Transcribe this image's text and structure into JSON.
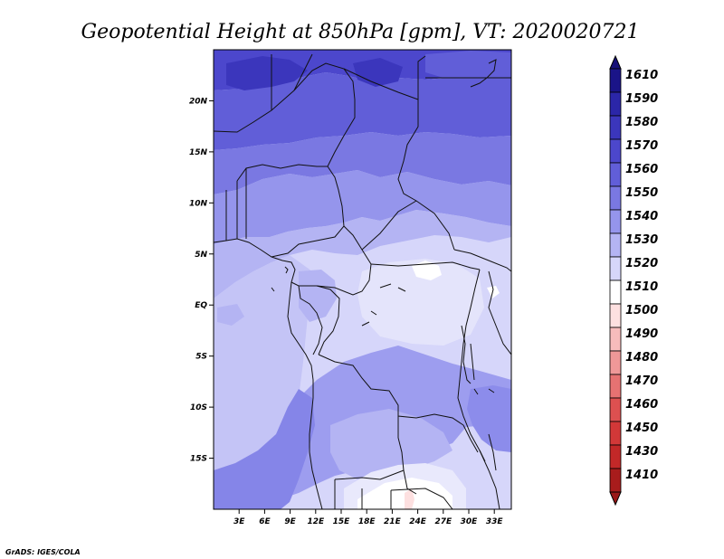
{
  "title": "Geopotential Height at 850hPa [gpm], VT: 2020020721",
  "credit": "GrADS: IGES/COLA",
  "map": {
    "lon_range": [
      0,
      35
    ],
    "lat_range": [
      -20,
      25
    ],
    "lon_ticks": [
      {
        "lon": 3,
        "label": "3E"
      },
      {
        "lon": 6,
        "label": "6E"
      },
      {
        "lon": 9,
        "label": "9E"
      },
      {
        "lon": 12,
        "label": "12E"
      },
      {
        "lon": 15,
        "label": "15E"
      },
      {
        "lon": 18,
        "label": "18E"
      },
      {
        "lon": 21,
        "label": "21E"
      },
      {
        "lon": 24,
        "label": "24E"
      },
      {
        "lon": 27,
        "label": "27E"
      },
      {
        "lon": 30,
        "label": "30E"
      },
      {
        "lon": 33,
        "label": "33E"
      }
    ],
    "lat_ticks": [
      {
        "lat": 20,
        "label": "20N"
      },
      {
        "lat": 15,
        "label": "15N"
      },
      {
        "lat": 10,
        "label": "10N"
      },
      {
        "lat": 5,
        "label": "5N"
      },
      {
        "lat": 0,
        "label": "EQ"
      },
      {
        "lat": -5,
        "label": "5S"
      },
      {
        "lat": -10,
        "label": "10S"
      },
      {
        "lat": -15,
        "label": "15S"
      }
    ]
  },
  "colorbar": {
    "labels": [
      "1610",
      "1590",
      "1580",
      "1570",
      "1560",
      "1550",
      "1540",
      "1530",
      "1520",
      "1510",
      "1500",
      "1490",
      "1480",
      "1470",
      "1460",
      "1450",
      "1430",
      "1410"
    ],
    "colors": [
      "#1a1488",
      "#2b26a8",
      "#3b36bc",
      "#4c47cc",
      "#615ed8",
      "#7a78e2",
      "#9595ec",
      "#b4b4f3",
      "#d6d6fa",
      "#ffffff",
      "#fde0e0",
      "#f7bcbc",
      "#ef9898",
      "#e67272",
      "#dd5050",
      "#d23838",
      "#c22828",
      "#a81c1c"
    ],
    "top_color": "#160f78",
    "bottom_color": "#9a1818"
  }
}
